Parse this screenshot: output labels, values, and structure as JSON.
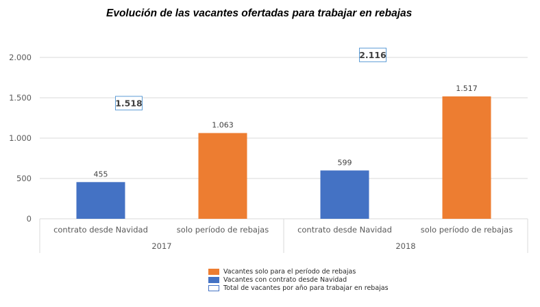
{
  "chart_data": {
    "type": "bar",
    "title": "Evolución de las vacantes ofertadas para trabajar en rebajas",
    "xlabel": "",
    "ylabel": "",
    "ylim": [
      0,
      2000
    ],
    "yticks": [
      0,
      500,
      1000,
      1500,
      2000
    ],
    "ytick_labels": [
      "0",
      "500",
      "1.000",
      "1.500",
      "2.000"
    ],
    "grid": true,
    "groups": [
      {
        "label": "2017",
        "total": 1518,
        "total_label": "1.518",
        "bars": [
          {
            "category": "contrato desde Navidad",
            "series": "Vacantes con contrato desde Navidad",
            "value": 455,
            "label": "455"
          },
          {
            "category": "solo período de rebajas",
            "series": "Vacantes solo para el período de rebajas",
            "value": 1063,
            "label": "1.063"
          }
        ]
      },
      {
        "label": "2018",
        "total": 2116,
        "total_label": "2.116",
        "bars": [
          {
            "category": "contrato desde Navidad",
            "series": "Vacantes con contrato desde Navidad",
            "value": 599,
            "label": "599"
          },
          {
            "category": "solo período de rebajas",
            "series": "Vacantes solo para el período de rebajas",
            "value": 1517,
            "label": "1.517"
          }
        ]
      }
    ],
    "legend": {
      "position": "bottom",
      "entries": [
        {
          "label": "Vacantes solo para el período de rebajas",
          "color": "#ED7D31",
          "style": "fill"
        },
        {
          "label": "Vacantes con contrato desde Navidad",
          "color": "#4472C4",
          "style": "fill"
        },
        {
          "label": "Total de vacantes por año para trabajar en rebajas",
          "color": "#4472C4",
          "style": "outline"
        }
      ]
    },
    "colors": {
      "Vacantes con contrato desde Navidad": "#4472C4",
      "Vacantes solo para el período de rebajas": "#ED7D31",
      "total_box_border": "#5B9BD5",
      "gridline": "#D9D9D9",
      "axis_text": "#595959"
    }
  }
}
